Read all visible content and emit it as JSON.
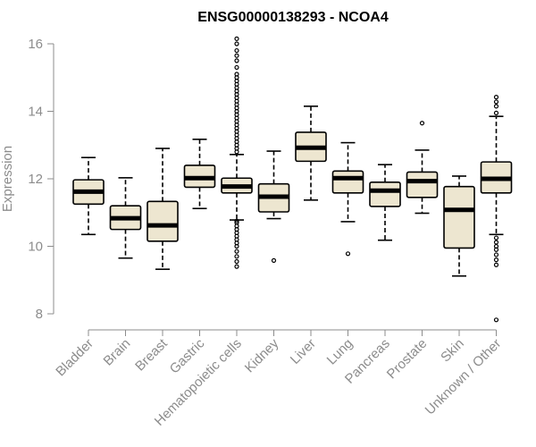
{
  "chart_data": {
    "type": "boxplot",
    "title": "ENSG00000138293 - NCOA4",
    "xlabel": "",
    "ylabel": "Expression",
    "ylim": [
      7.7,
      16.2
    ],
    "yticks": [
      8,
      10,
      12,
      14,
      16
    ],
    "box_fill": "#ede6d0",
    "categories": [
      "Bladder",
      "Brain",
      "Breast",
      "Gastric",
      "Hematopoietic cells",
      "Kidney",
      "Liver",
      "Lung",
      "Pancreas",
      "Prostate",
      "Skin",
      "Unknown / Other"
    ],
    "series": [
      {
        "name": "Bladder",
        "whisker_low": 10.35,
        "q1": 11.25,
        "median": 11.62,
        "q3": 11.97,
        "whisker_high": 12.63,
        "outliers": []
      },
      {
        "name": "Brain",
        "whisker_low": 9.65,
        "q1": 10.5,
        "median": 10.83,
        "q3": 11.2,
        "whisker_high": 12.03,
        "outliers": []
      },
      {
        "name": "Breast",
        "whisker_low": 9.32,
        "q1": 10.15,
        "median": 10.62,
        "q3": 11.33,
        "whisker_high": 12.9,
        "outliers": []
      },
      {
        "name": "Gastric",
        "whisker_low": 11.12,
        "q1": 11.75,
        "median": 12.02,
        "q3": 12.4,
        "whisker_high": 13.17,
        "outliers": []
      },
      {
        "name": "Hematopoietic cells",
        "whisker_low": 10.78,
        "q1": 11.58,
        "median": 11.77,
        "q3": 12.02,
        "whisker_high": 12.72,
        "outliers": [
          9.4,
          9.55,
          9.7,
          9.85,
          10.0,
          10.1,
          10.2,
          10.3,
          10.4,
          10.5,
          10.6,
          10.7,
          10.75,
          12.8,
          12.9,
          13.0,
          13.1,
          13.2,
          13.3,
          13.4,
          13.5,
          13.6,
          13.7,
          13.8,
          13.9,
          14.0,
          14.1,
          14.2,
          14.3,
          14.4,
          14.5,
          14.6,
          14.7,
          14.8,
          14.9,
          15.0,
          15.1,
          15.3,
          15.5,
          15.65,
          15.8,
          16.0,
          16.15
        ]
      },
      {
        "name": "Kidney",
        "whisker_low": 10.82,
        "q1": 11.02,
        "median": 11.47,
        "q3": 11.85,
        "whisker_high": 12.82,
        "outliers": [
          9.58
        ]
      },
      {
        "name": "Liver",
        "whisker_low": 11.37,
        "q1": 12.52,
        "median": 12.92,
        "q3": 13.38,
        "whisker_high": 14.15,
        "outliers": []
      },
      {
        "name": "Lung",
        "whisker_low": 10.73,
        "q1": 11.58,
        "median": 12.02,
        "q3": 12.23,
        "whisker_high": 13.07,
        "outliers": [
          9.78
        ]
      },
      {
        "name": "Pancreas",
        "whisker_low": 10.18,
        "q1": 11.18,
        "median": 11.65,
        "q3": 11.9,
        "whisker_high": 12.42,
        "outliers": []
      },
      {
        "name": "Prostate",
        "whisker_low": 10.98,
        "q1": 11.45,
        "median": 11.93,
        "q3": 12.2,
        "whisker_high": 12.85,
        "outliers": [
          13.65
        ]
      },
      {
        "name": "Skin",
        "whisker_low": 9.12,
        "q1": 9.95,
        "median": 11.08,
        "q3": 11.77,
        "whisker_high": 12.08,
        "outliers": []
      },
      {
        "name": "Unknown / Other",
        "whisker_low": 10.35,
        "q1": 11.58,
        "median": 12.0,
        "q3": 12.5,
        "whisker_high": 13.85,
        "outliers": [
          7.82,
          9.45,
          9.6,
          9.75,
          9.9,
          10.0,
          10.12,
          10.25,
          13.95,
          14.15,
          14.28,
          14.42
        ]
      }
    ]
  }
}
